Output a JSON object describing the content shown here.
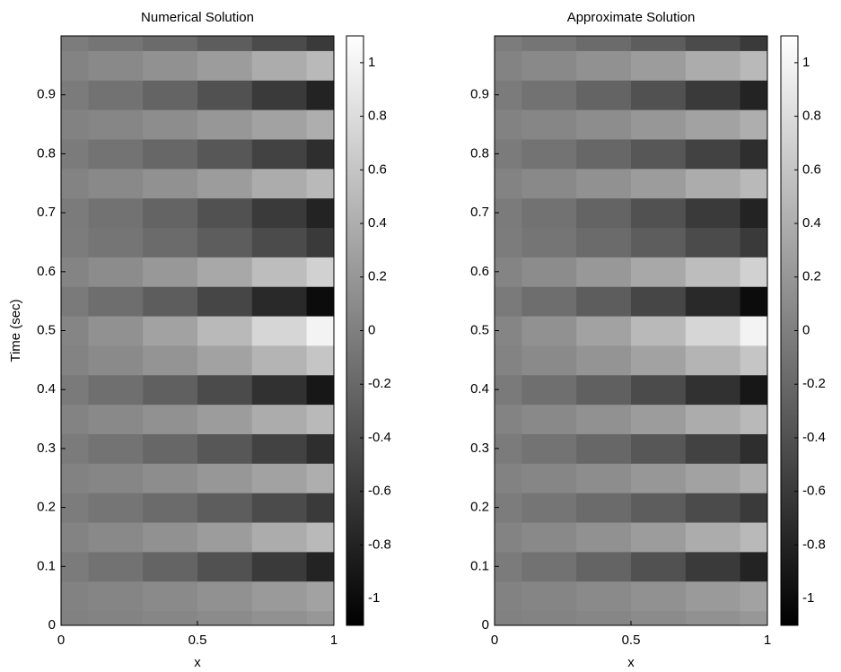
{
  "chart_data": [
    {
      "type": "heatmap",
      "title": "Numerical Solution",
      "xlabel": "x",
      "ylabel": "Time (sec)",
      "colormap": "gray",
      "x": [
        0,
        0.2,
        0.4,
        0.6,
        0.8,
        1
      ],
      "y": [
        0,
        0.05,
        0.1,
        0.15,
        0.2,
        0.25,
        0.3,
        0.35,
        0.4,
        0.45,
        0.5,
        0.55,
        0.6,
        0.65,
        0.7,
        0.75,
        0.8,
        0.85,
        0.9,
        0.95,
        1
      ],
      "z": [
        [
          0.01,
          0.03,
          0.06,
          0.1,
          0.15,
          0.2
        ],
        [
          0.02,
          0.05,
          0.09,
          0.15,
          0.23,
          0.3
        ],
        [
          -0.04,
          -0.12,
          -0.24,
          -0.4,
          -0.6,
          -0.8
        ],
        [
          0.03,
          0.08,
          0.15,
          0.25,
          0.38,
          0.5
        ],
        [
          -0.03,
          -0.09,
          -0.18,
          -0.3,
          -0.45,
          -0.6
        ],
        [
          0.02,
          0.06,
          0.12,
          0.2,
          0.3,
          0.4
        ],
        [
          -0.04,
          -0.11,
          -0.21,
          -0.35,
          -0.53,
          -0.7
        ],
        [
          0.03,
          0.08,
          0.15,
          0.25,
          0.38,
          0.5
        ],
        [
          -0.05,
          -0.14,
          -0.27,
          -0.45,
          -0.68,
          -0.9
        ],
        [
          0.03,
          0.09,
          0.18,
          0.3,
          0.45,
          0.6
        ],
        [
          0.05,
          0.15,
          0.3,
          0.5,
          0.75,
          1
        ],
        [
          -0.05,
          -0.15,
          -0.3,
          -0.5,
          -0.75,
          -1
        ],
        [
          0.04,
          0.11,
          0.21,
          0.35,
          0.53,
          0.7
        ],
        [
          -0.03,
          -0.09,
          -0.18,
          -0.3,
          -0.45,
          -0.6
        ],
        [
          -0.04,
          -0.12,
          -0.24,
          -0.4,
          -0.6,
          -0.8
        ],
        [
          0.03,
          0.08,
          0.15,
          0.25,
          0.38,
          0.5
        ],
        [
          -0.04,
          -0.11,
          -0.21,
          -0.35,
          -0.53,
          -0.7
        ],
        [
          0.02,
          0.06,
          0.12,
          0.2,
          0.3,
          0.4
        ],
        [
          -0.04,
          -0.12,
          -0.24,
          -0.4,
          -0.6,
          -0.8
        ],
        [
          0.03,
          0.08,
          0.15,
          0.25,
          0.38,
          0.5
        ],
        [
          -0.03,
          -0.09,
          -0.18,
          -0.3,
          -0.45,
          -0.6
        ]
      ],
      "xlim": [
        0,
        1
      ],
      "ylim": [
        0,
        1
      ],
      "xticks": [
        0,
        0.5,
        1
      ],
      "yticks": [
        0,
        0.1,
        0.2,
        0.3,
        0.4,
        0.5,
        0.6,
        0.7,
        0.8,
        0.9
      ],
      "clim": [
        -1.1,
        1.1
      ],
      "cticks": [
        -1,
        -0.8,
        -0.6,
        -0.4,
        -0.2,
        0,
        0.2,
        0.4,
        0.6,
        0.8,
        1
      ]
    },
    {
      "type": "heatmap",
      "title": "Approximate Solution",
      "xlabel": "x",
      "colormap": "gray",
      "x": [
        0,
        0.2,
        0.4,
        0.6,
        0.8,
        1
      ],
      "y": [
        0,
        0.05,
        0.1,
        0.15,
        0.2,
        0.25,
        0.3,
        0.35,
        0.4,
        0.45,
        0.5,
        0.55,
        0.6,
        0.65,
        0.7,
        0.75,
        0.8,
        0.85,
        0.9,
        0.95,
        1
      ],
      "z": [
        [
          0.01,
          0.03,
          0.06,
          0.1,
          0.15,
          0.2
        ],
        [
          0.02,
          0.05,
          0.09,
          0.15,
          0.23,
          0.3
        ],
        [
          -0.04,
          -0.12,
          -0.24,
          -0.4,
          -0.6,
          -0.8
        ],
        [
          0.03,
          0.08,
          0.15,
          0.25,
          0.38,
          0.5
        ],
        [
          -0.03,
          -0.09,
          -0.18,
          -0.3,
          -0.45,
          -0.6
        ],
        [
          0.02,
          0.06,
          0.12,
          0.2,
          0.3,
          0.4
        ],
        [
          -0.04,
          -0.11,
          -0.21,
          -0.35,
          -0.53,
          -0.7
        ],
        [
          0.03,
          0.08,
          0.15,
          0.25,
          0.38,
          0.5
        ],
        [
          -0.05,
          -0.14,
          -0.27,
          -0.45,
          -0.68,
          -0.9
        ],
        [
          0.03,
          0.09,
          0.18,
          0.3,
          0.45,
          0.6
        ],
        [
          0.05,
          0.15,
          0.3,
          0.5,
          0.75,
          1
        ],
        [
          -0.05,
          -0.15,
          -0.3,
          -0.5,
          -0.75,
          -1
        ],
        [
          0.04,
          0.11,
          0.21,
          0.35,
          0.53,
          0.7
        ],
        [
          -0.03,
          -0.09,
          -0.18,
          -0.3,
          -0.45,
          -0.6
        ],
        [
          -0.04,
          -0.12,
          -0.24,
          -0.4,
          -0.6,
          -0.8
        ],
        [
          0.03,
          0.08,
          0.15,
          0.25,
          0.38,
          0.5
        ],
        [
          -0.04,
          -0.11,
          -0.21,
          -0.35,
          -0.53,
          -0.7
        ],
        [
          0.02,
          0.06,
          0.12,
          0.2,
          0.3,
          0.4
        ],
        [
          -0.04,
          -0.12,
          -0.24,
          -0.4,
          -0.6,
          -0.8
        ],
        [
          0.03,
          0.08,
          0.15,
          0.25,
          0.38,
          0.5
        ],
        [
          -0.03,
          -0.09,
          -0.18,
          -0.3,
          -0.45,
          -0.6
        ]
      ],
      "xlim": [
        0,
        1
      ],
      "ylim": [
        0,
        1
      ],
      "xticks": [
        0,
        0.5,
        1
      ],
      "yticks": [
        0,
        0.1,
        0.2,
        0.3,
        0.4,
        0.5,
        0.6,
        0.7,
        0.8,
        0.9
      ],
      "clim": [
        -1.1,
        1.1
      ],
      "cticks": [
        -1,
        -0.8,
        -0.6,
        -0.4,
        -0.2,
        0,
        0.2,
        0.4,
        0.6,
        0.8,
        1
      ]
    }
  ]
}
